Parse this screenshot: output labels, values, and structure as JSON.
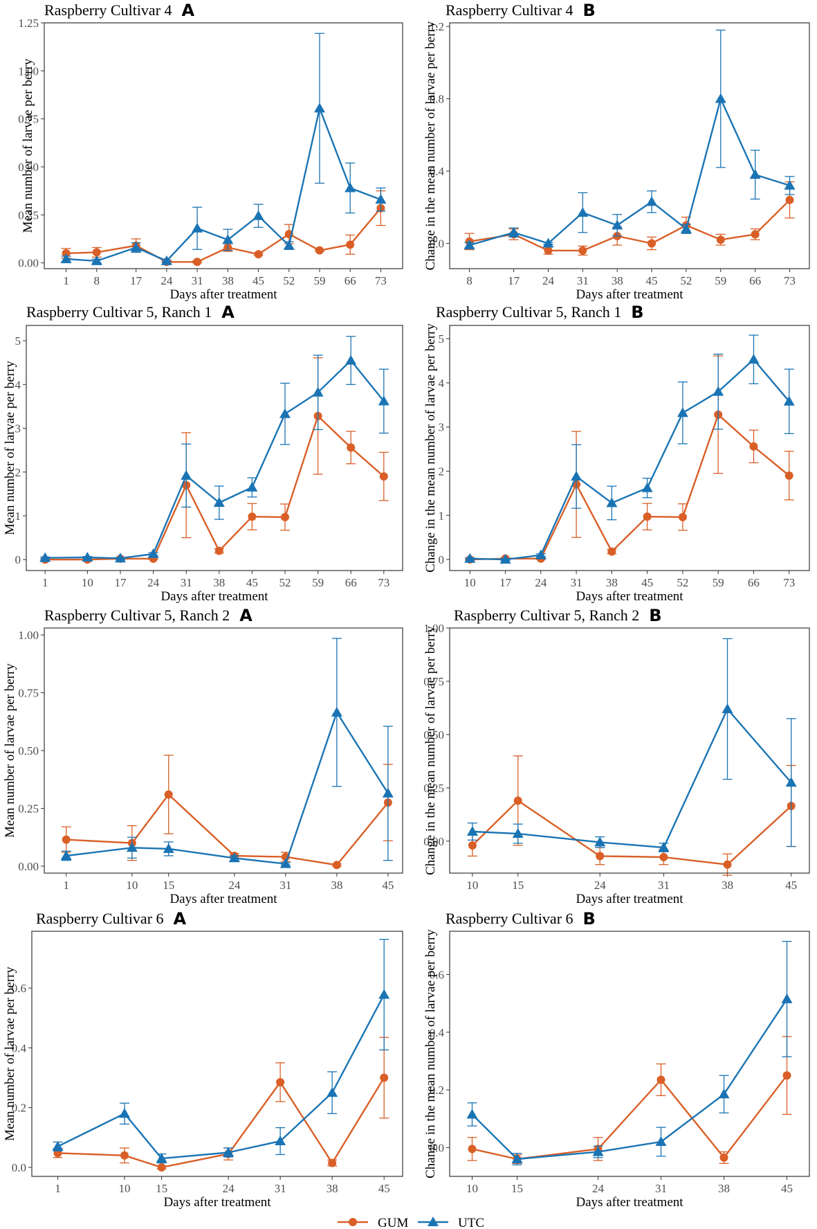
{
  "colors": {
    "GUM": "#D95F27",
    "UTC": "#1A74B4"
  },
  "legend": {
    "items": [
      {
        "name": "GUM",
        "marker": "circle"
      },
      {
        "name": "UTC",
        "marker": "triangle"
      }
    ]
  },
  "chart_data": [
    {
      "type": "line",
      "title": "Raspberry Cultivar 4",
      "letter": "A",
      "xlabel": "Days after treatment",
      "ylabel": "Mean number of larvae per berry",
      "x": [
        1,
        8,
        17,
        24,
        31,
        38,
        45,
        52,
        59,
        66,
        73
      ],
      "xlim": [
        -4,
        78
      ],
      "ylim": [
        -0.03,
        1.25
      ],
      "yticks": [
        0,
        0.25,
        0.5,
        0.75,
        1.0,
        1.25
      ],
      "ytick_labels": [
        "0.00",
        "0.25",
        "0.50",
        "0.75",
        "1.00",
        "1.25"
      ],
      "series": [
        {
          "name": "GUM",
          "values": [
            0.05,
            0.055,
            0.09,
            0.005,
            0.005,
            0.08,
            0.045,
            0.15,
            0.065,
            0.095,
            0.285
          ],
          "err": [
            0.025,
            0.025,
            0.035,
            0.005,
            0.005,
            0.02,
            0.005,
            0.05,
            0.005,
            0.05,
            0.09
          ]
        },
        {
          "name": "UTC",
          "values": [
            0.02,
            0.01,
            0.08,
            0.01,
            0.18,
            0.12,
            0.245,
            0.09,
            0.805,
            0.39,
            0.33
          ],
          "err": [
            0.015,
            0.01,
            0.025,
            0.005,
            0.11,
            0.055,
            0.06,
            0.02,
            0.39,
            0.13,
            0.06
          ]
        }
      ]
    },
    {
      "type": "line",
      "title": "Raspberry Cultivar 4",
      "letter": "B",
      "xlabel": "Days after treatment",
      "ylabel": "Change in the mean number of larvae per berry",
      "x": [
        8,
        17,
        24,
        31,
        38,
        45,
        52,
        59,
        66,
        73
      ],
      "xlim": [
        4,
        77
      ],
      "ylim": [
        -0.14,
        1.22
      ],
      "yticks": [
        0,
        0.4,
        0.8,
        1.2
      ],
      "ytick_labels": [
        "0.0",
        "0.4",
        "0.8",
        "1.2"
      ],
      "series": [
        {
          "name": "GUM",
          "values": [
            0.01,
            0.05,
            -0.04,
            -0.04,
            0.04,
            0.0,
            0.1,
            0.02,
            0.05,
            0.24
          ],
          "err": [
            0.045,
            0.03,
            0.02,
            0.025,
            0.05,
            0.035,
            0.045,
            0.03,
            0.03,
            0.1
          ]
        },
        {
          "name": "UTC",
          "values": [
            -0.01,
            0.06,
            0.0,
            0.17,
            0.1,
            0.23,
            0.08,
            0.8,
            0.38,
            0.32
          ],
          "err": [
            0.015,
            0.025,
            0.005,
            0.11,
            0.06,
            0.06,
            0.025,
            0.38,
            0.135,
            0.05
          ]
        }
      ]
    },
    {
      "type": "line",
      "title": "Raspberry Cultivar 5, Ranch 1",
      "letter": "A",
      "xlabel": "Days after treatment",
      "ylabel": "Mean number of larvae per berry",
      "x": [
        1,
        10,
        17,
        24,
        31,
        38,
        45,
        52,
        59,
        66,
        73
      ],
      "xlim": [
        -3,
        77
      ],
      "ylim": [
        -0.25,
        5.35
      ],
      "yticks": [
        0,
        1,
        2,
        3,
        4,
        5
      ],
      "ytick_labels": [
        "0",
        "1",
        "2",
        "3",
        "4",
        "5"
      ],
      "series": [
        {
          "name": "GUM",
          "values": [
            0.0,
            0.0,
            0.02,
            0.02,
            1.7,
            0.2,
            0.98,
            0.97,
            3.28,
            2.56,
            1.9
          ],
          "err": [
            0.02,
            0.02,
            0.02,
            0.02,
            1.2,
            0.05,
            0.3,
            0.3,
            1.33,
            0.37,
            0.55
          ]
        },
        {
          "name": "UTC",
          "values": [
            0.04,
            0.05,
            0.03,
            0.13,
            1.92,
            1.3,
            1.65,
            3.33,
            3.82,
            4.55,
            3.62
          ],
          "err": [
            0.02,
            0.02,
            0.02,
            0.03,
            0.72,
            0.38,
            0.22,
            0.7,
            0.85,
            0.55,
            0.73
          ]
        }
      ]
    },
    {
      "type": "line",
      "title": "Raspberry Cultivar 5, Ranch 1",
      "letter": "B",
      "xlabel": "Days after treatment",
      "ylabel": "Change in the mean number of larvae per berry",
      "x": [
        10,
        17,
        24,
        31,
        38,
        45,
        52,
        59,
        66,
        73
      ],
      "xlim": [
        6,
        77
      ],
      "ylim": [
        -0.25,
        5.3
      ],
      "yticks": [
        0,
        1,
        2,
        3,
        4,
        5
      ],
      "ytick_labels": [
        "0",
        "1",
        "2",
        "3",
        "4",
        "5"
      ],
      "series": [
        {
          "name": "GUM",
          "values": [
            0.0,
            0.02,
            0.02,
            1.7,
            0.18,
            0.97,
            0.96,
            3.28,
            2.56,
            1.9
          ],
          "err": [
            0.02,
            0.02,
            0.02,
            1.2,
            0.05,
            0.3,
            0.3,
            1.33,
            0.37,
            0.55
          ]
        },
        {
          "name": "UTC",
          "values": [
            0.02,
            0.0,
            0.1,
            1.88,
            1.28,
            1.62,
            3.32,
            3.8,
            4.53,
            3.58
          ],
          "err": [
            0.02,
            0.02,
            0.03,
            0.72,
            0.38,
            0.22,
            0.7,
            0.85,
            0.55,
            0.73
          ]
        }
      ]
    },
    {
      "type": "line",
      "title": "Raspberry Cultivar 5, Ranch 2",
      "letter": "A",
      "xlabel": "Days after treatment",
      "ylabel": "Mean number of larvae per berry",
      "x": [
        1,
        10,
        15,
        24,
        31,
        38,
        45
      ],
      "xlim": [
        -2,
        47
      ],
      "ylim": [
        -0.03,
        1.03
      ],
      "yticks": [
        0,
        0.25,
        0.5,
        0.75,
        1.0
      ],
      "ytick_labels": [
        "0.00",
        "0.25",
        "0.50",
        "0.75",
        "1.00"
      ],
      "series": [
        {
          "name": "GUM",
          "values": [
            0.115,
            0.1,
            0.31,
            0.045,
            0.04,
            0.005,
            0.275
          ],
          "err": [
            0.055,
            0.075,
            0.17,
            0.01,
            0.02,
            0.005,
            0.165
          ]
        },
        {
          "name": "UTC",
          "values": [
            0.045,
            0.08,
            0.075,
            0.035,
            0.01,
            0.665,
            0.315
          ],
          "err": [
            0.02,
            0.045,
            0.03,
            0.01,
            0.005,
            0.32,
            0.29
          ]
        }
      ]
    },
    {
      "type": "line",
      "title": "Raspberry Cultivar 5, Ranch 2",
      "letter": "B",
      "xlabel": "Days after treatment",
      "ylabel": "Change in the mean number of larvae per berry",
      "x": [
        10,
        15,
        24,
        31,
        38,
        45
      ],
      "xlim": [
        7.5,
        47
      ],
      "ylim": [
        -0.15,
        1.0
      ],
      "yticks": [
        0,
        0.25,
        0.5,
        0.75,
        1.0
      ],
      "ytick_labels": [
        "0.00",
        "0.25",
        "0.50",
        "0.75",
        "1.00"
      ],
      "series": [
        {
          "name": "GUM",
          "values": [
            -0.02,
            0.19,
            -0.07,
            -0.075,
            -0.11,
            0.165
          ],
          "err": [
            0.05,
            0.21,
            0.04,
            0.035,
            0.05,
            0.19
          ]
        },
        {
          "name": "UTC",
          "values": [
            0.045,
            0.035,
            -0.005,
            -0.03,
            0.62,
            0.275
          ],
          "err": [
            0.04,
            0.045,
            0.025,
            0.02,
            0.33,
            0.3
          ]
        }
      ]
    },
    {
      "type": "line",
      "title": "Raspberry Cultivar 6",
      "letter": "A",
      "xlabel": "Days after treatment",
      "ylabel": "Mean number of larvae per berry",
      "x": [
        1,
        10,
        15,
        24,
        31,
        38,
        45
      ],
      "xlim": [
        -2.5,
        47.5
      ],
      "ylim": [
        -0.03,
        0.79
      ],
      "yticks": [
        0,
        0.2,
        0.4,
        0.6
      ],
      "ytick_labels": [
        "0.0",
        "0.2",
        "0.4",
        "0.6"
      ],
      "series": [
        {
          "name": "GUM",
          "values": [
            0.048,
            0.04,
            0.0,
            0.045,
            0.285,
            0.015,
            0.3
          ],
          "err": [
            0.015,
            0.025,
            0.005,
            0.02,
            0.065,
            0.01,
            0.135
          ]
        },
        {
          "name": "UTC",
          "values": [
            0.07,
            0.18,
            0.03,
            0.05,
            0.088,
            0.25,
            0.578
          ],
          "err": [
            0.015,
            0.035,
            0.015,
            0.015,
            0.045,
            0.07,
            0.185
          ]
        }
      ]
    },
    {
      "type": "line",
      "title": "Raspberry Cultivar 6",
      "letter": "B",
      "xlabel": "Days after treatment",
      "ylabel": "Change in the mean number of larvae per berry",
      "x": [
        10,
        15,
        24,
        31,
        38,
        45
      ],
      "xlim": [
        7.5,
        47.5
      ],
      "ylim": [
        -0.1,
        0.75
      ],
      "yticks": [
        0,
        0.2,
        0.4,
        0.6
      ],
      "ytick_labels": [
        "0.0",
        "0.2",
        "0.4",
        "0.6"
      ],
      "series": [
        {
          "name": "GUM",
          "values": [
            -0.005,
            -0.04,
            -0.005,
            0.235,
            -0.035,
            0.25
          ],
          "err": [
            0.04,
            0.015,
            0.04,
            0.055,
            0.02,
            0.135
          ]
        },
        {
          "name": "UTC",
          "values": [
            0.115,
            -0.04,
            -0.015,
            0.02,
            0.185,
            0.515
          ],
          "err": [
            0.04,
            0.02,
            0.02,
            0.05,
            0.065,
            0.2
          ]
        }
      ]
    }
  ]
}
